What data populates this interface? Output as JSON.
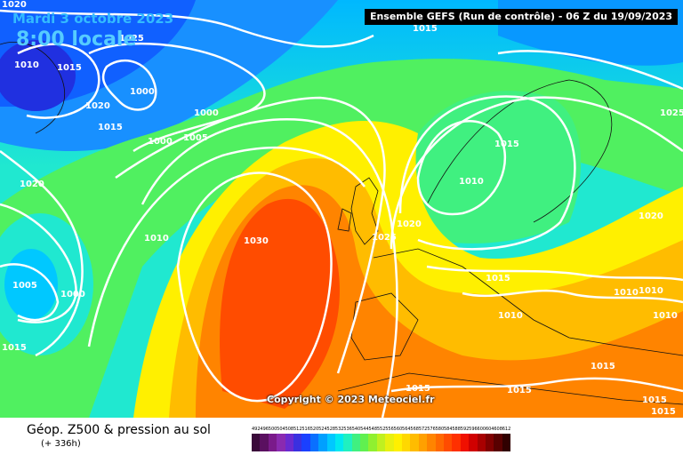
{
  "header": {
    "date": "Mardi 3 octobre 2023",
    "time": "8:00 locale",
    "run_info": "Ensemble GEFS  (Run de contrôle)  -  06 Z du 19/09/2023"
  },
  "copyright": "Copyright © 2023 Meteociel.fr",
  "footer": {
    "title": "Géop. Z500 & pression au sol",
    "subtitle": "(+ 336h)"
  },
  "legend": {
    "values": [
      "492",
      "496",
      "500",
      "504",
      "508",
      "512",
      "516",
      "520",
      "524",
      "528",
      "532",
      "536",
      "540",
      "544",
      "548",
      "552",
      "556",
      "560",
      "564",
      "568",
      "572",
      "576",
      "580",
      "584",
      "588",
      "592",
      "596",
      "600",
      "604",
      "608",
      "612"
    ],
    "colors": [
      "#3a0a3a",
      "#5a1060",
      "#7a1a8a",
      "#8a2ab0",
      "#6a2ad0",
      "#3a30e0",
      "#1a40ff",
      "#0a70ff",
      "#00a0ff",
      "#00c8ff",
      "#00e8f0",
      "#20f0c0",
      "#40f080",
      "#60f050",
      "#90f030",
      "#c0f020",
      "#e8f010",
      "#fff000",
      "#ffd800",
      "#ffbc00",
      "#ffa000",
      "#ff8400",
      "#ff6800",
      "#ff4c00",
      "#ff3000",
      "#f01000",
      "#d00000",
      "#a80000",
      "#800000",
      "#580000",
      "#300000"
    ]
  },
  "isobars": [
    {
      "value": "1020",
      "kind": "pressure"
    },
    {
      "value": "1025",
      "kind": "pressure"
    },
    {
      "value": "1010",
      "kind": "pressure"
    },
    {
      "value": "1015",
      "kind": "pressure"
    },
    {
      "value": "1000",
      "kind": "pressure"
    },
    {
      "value": "1020",
      "kind": "pressure"
    },
    {
      "value": "1015",
      "kind": "pressure"
    },
    {
      "value": "1000",
      "kind": "pressure"
    },
    {
      "value": "1005",
      "kind": "pressure"
    },
    {
      "value": "1000",
      "kind": "pressure"
    },
    {
      "value": "1015",
      "kind": "pressure"
    },
    {
      "value": "1020",
      "kind": "pressure"
    },
    {
      "value": "1010",
      "kind": "pressure"
    },
    {
      "value": "1030",
      "kind": "pressure"
    },
    {
      "value": "1005",
      "kind": "pressure"
    },
    {
      "value": "1000",
      "kind": "pressure"
    },
    {
      "value": "1015",
      "kind": "pressure"
    },
    {
      "value": "1025",
      "kind": "pressure"
    },
    {
      "value": "1020",
      "kind": "pressure"
    },
    {
      "value": "1015",
      "kind": "pressure"
    },
    {
      "value": "1010",
      "kind": "pressure"
    },
    {
      "value": "1015",
      "kind": "pressure"
    },
    {
      "value": "1025",
      "kind": "pressure"
    },
    {
      "value": "1020",
      "kind": "pressure"
    },
    {
      "value": "1010",
      "kind": "pressure"
    },
    {
      "value": "1010",
      "kind": "pressure"
    },
    {
      "value": "1010",
      "kind": "pressure"
    },
    {
      "value": "1015",
      "kind": "pressure"
    },
    {
      "value": "1015",
      "kind": "pressure"
    },
    {
      "value": "1015",
      "kind": "pressure"
    },
    {
      "value": "1010",
      "kind": "pressure"
    },
    {
      "value": "1015",
      "kind": "pressure"
    },
    {
      "value": "1015",
      "kind": "pressure"
    }
  ]
}
